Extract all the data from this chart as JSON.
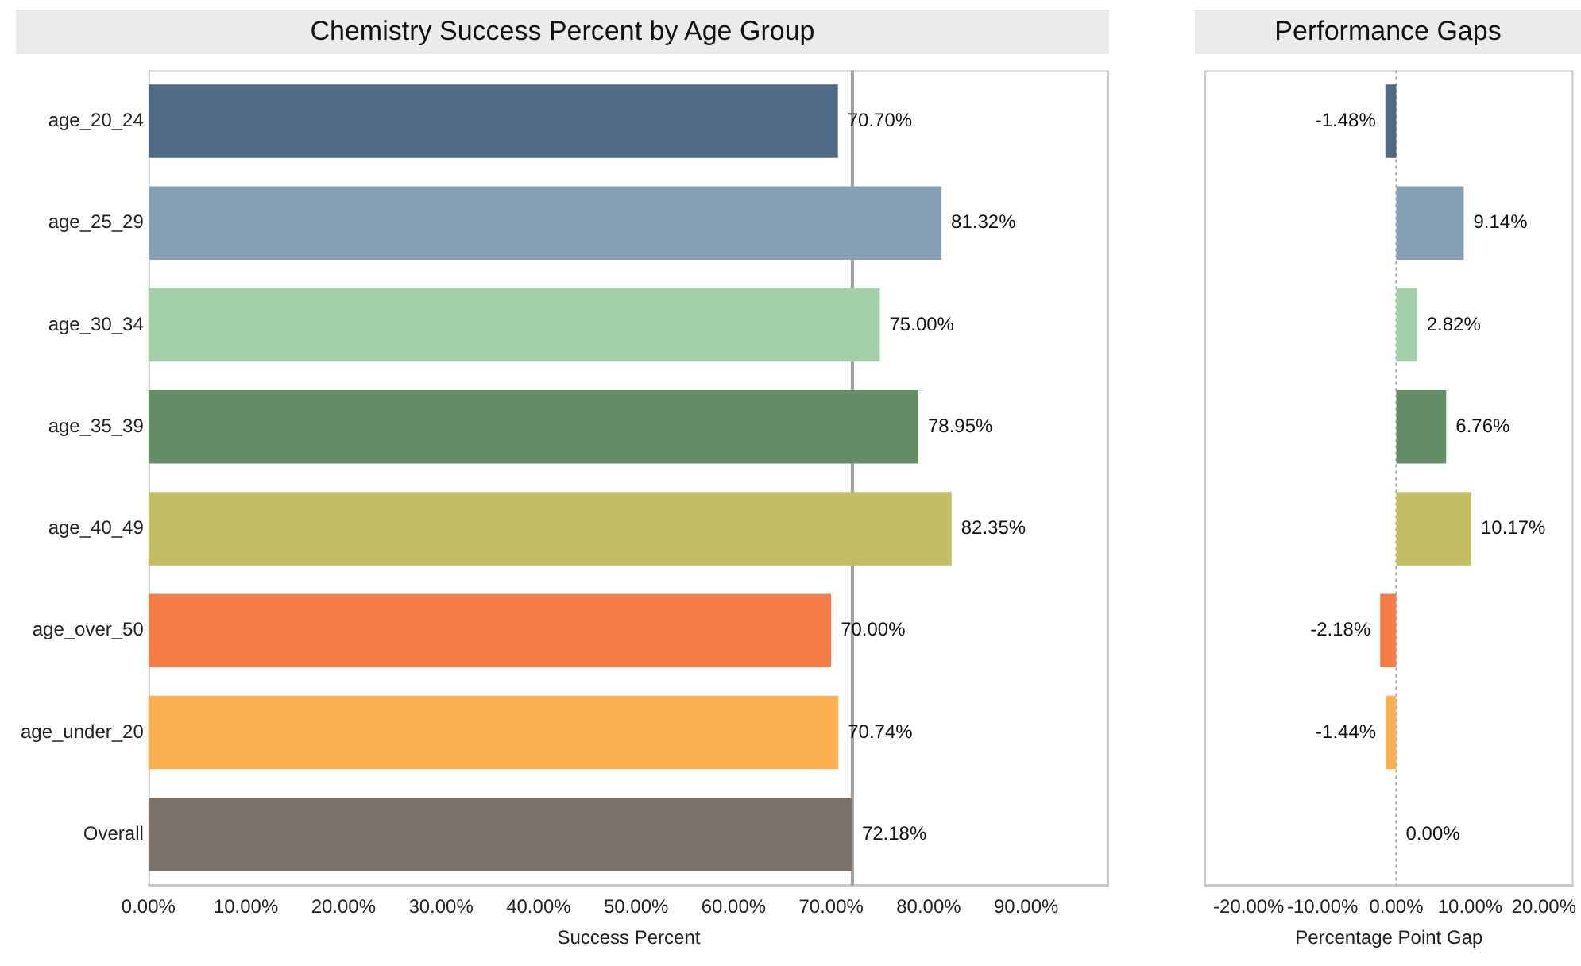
{
  "chart_data": [
    {
      "type": "bar",
      "orientation": "horizontal",
      "title": "Chemistry Success Percent by Age Group",
      "xlabel": "Success Percent",
      "categories": [
        "age_20_24",
        "age_25_29",
        "age_30_34",
        "age_35_39",
        "age_40_49",
        "age_over_50",
        "age_under_20",
        "Overall"
      ],
      "values": [
        70.7,
        81.32,
        75.0,
        78.95,
        82.35,
        70.0,
        70.74,
        72.18
      ],
      "colors": [
        "#4e6a84",
        "#879fb5",
        "#a3cfa9",
        "#628d65",
        "#c2bd62",
        "#f47d45",
        "#f9b04f",
        "#7c7168"
      ],
      "value_labels": [
        "70.70%",
        "81.32%",
        "75.00%",
        "78.95%",
        "82.35%",
        "70.00%",
        "70.74%",
        "72.18%"
      ],
      "xlim": [
        0,
        98.5
      ],
      "xticks": [
        {
          "value": 0,
          "label": "0.00%"
        },
        {
          "value": 10,
          "label": "10.00%"
        },
        {
          "value": 20,
          "label": "20.00%"
        },
        {
          "value": 30,
          "label": "30.00%"
        },
        {
          "value": 40,
          "label": "40.00%"
        },
        {
          "value": 50,
          "label": "50.00%"
        },
        {
          "value": 60,
          "label": "60.00%"
        },
        {
          "value": 70,
          "label": "70.00%"
        },
        {
          "value": 80,
          "label": "80.00%"
        },
        {
          "value": 90,
          "label": "90.00%"
        }
      ],
      "ref_lines": [
        {
          "axis": "x",
          "value": 72.18,
          "color": "#a0a0a0",
          "line_style": "solid"
        }
      ],
      "grid": false,
      "legend": false
    },
    {
      "type": "bar",
      "orientation": "horizontal",
      "title": "Performance Gaps",
      "xlabel": "Percentage Point Gap",
      "categories": [
        null,
        null,
        null,
        null,
        null,
        null,
        null,
        null
      ],
      "values": [
        -1.48,
        9.14,
        2.82,
        6.76,
        10.17,
        -2.18,
        -1.44,
        0.0
      ],
      "colors": [
        "#4e6a84",
        "#879fb5",
        "#a3cfa9",
        "#628d65",
        "#c2bd62",
        "#f47d45",
        "#f9b04f",
        "#7c7168"
      ],
      "value_labels": [
        "-1.48%",
        "9.14%",
        "2.82%",
        "6.76%",
        "10.17%",
        "-2.18%",
        "-1.44%",
        "0.00%"
      ],
      "xlim": [
        -26,
        24
      ],
      "xticks": [
        {
          "value": -20,
          "label": "-20.00%"
        },
        {
          "value": -10,
          "label": "-10.00%"
        },
        {
          "value": 0,
          "label": "0.00%"
        },
        {
          "value": 10,
          "label": "10.00%"
        },
        {
          "value": 20,
          "label": "20.00%"
        }
      ],
      "ref_lines": [
        {
          "axis": "x",
          "value": 0,
          "color": "#a0a0a0",
          "line_style": "dotted"
        }
      ],
      "grid": false,
      "legend": false
    }
  ]
}
